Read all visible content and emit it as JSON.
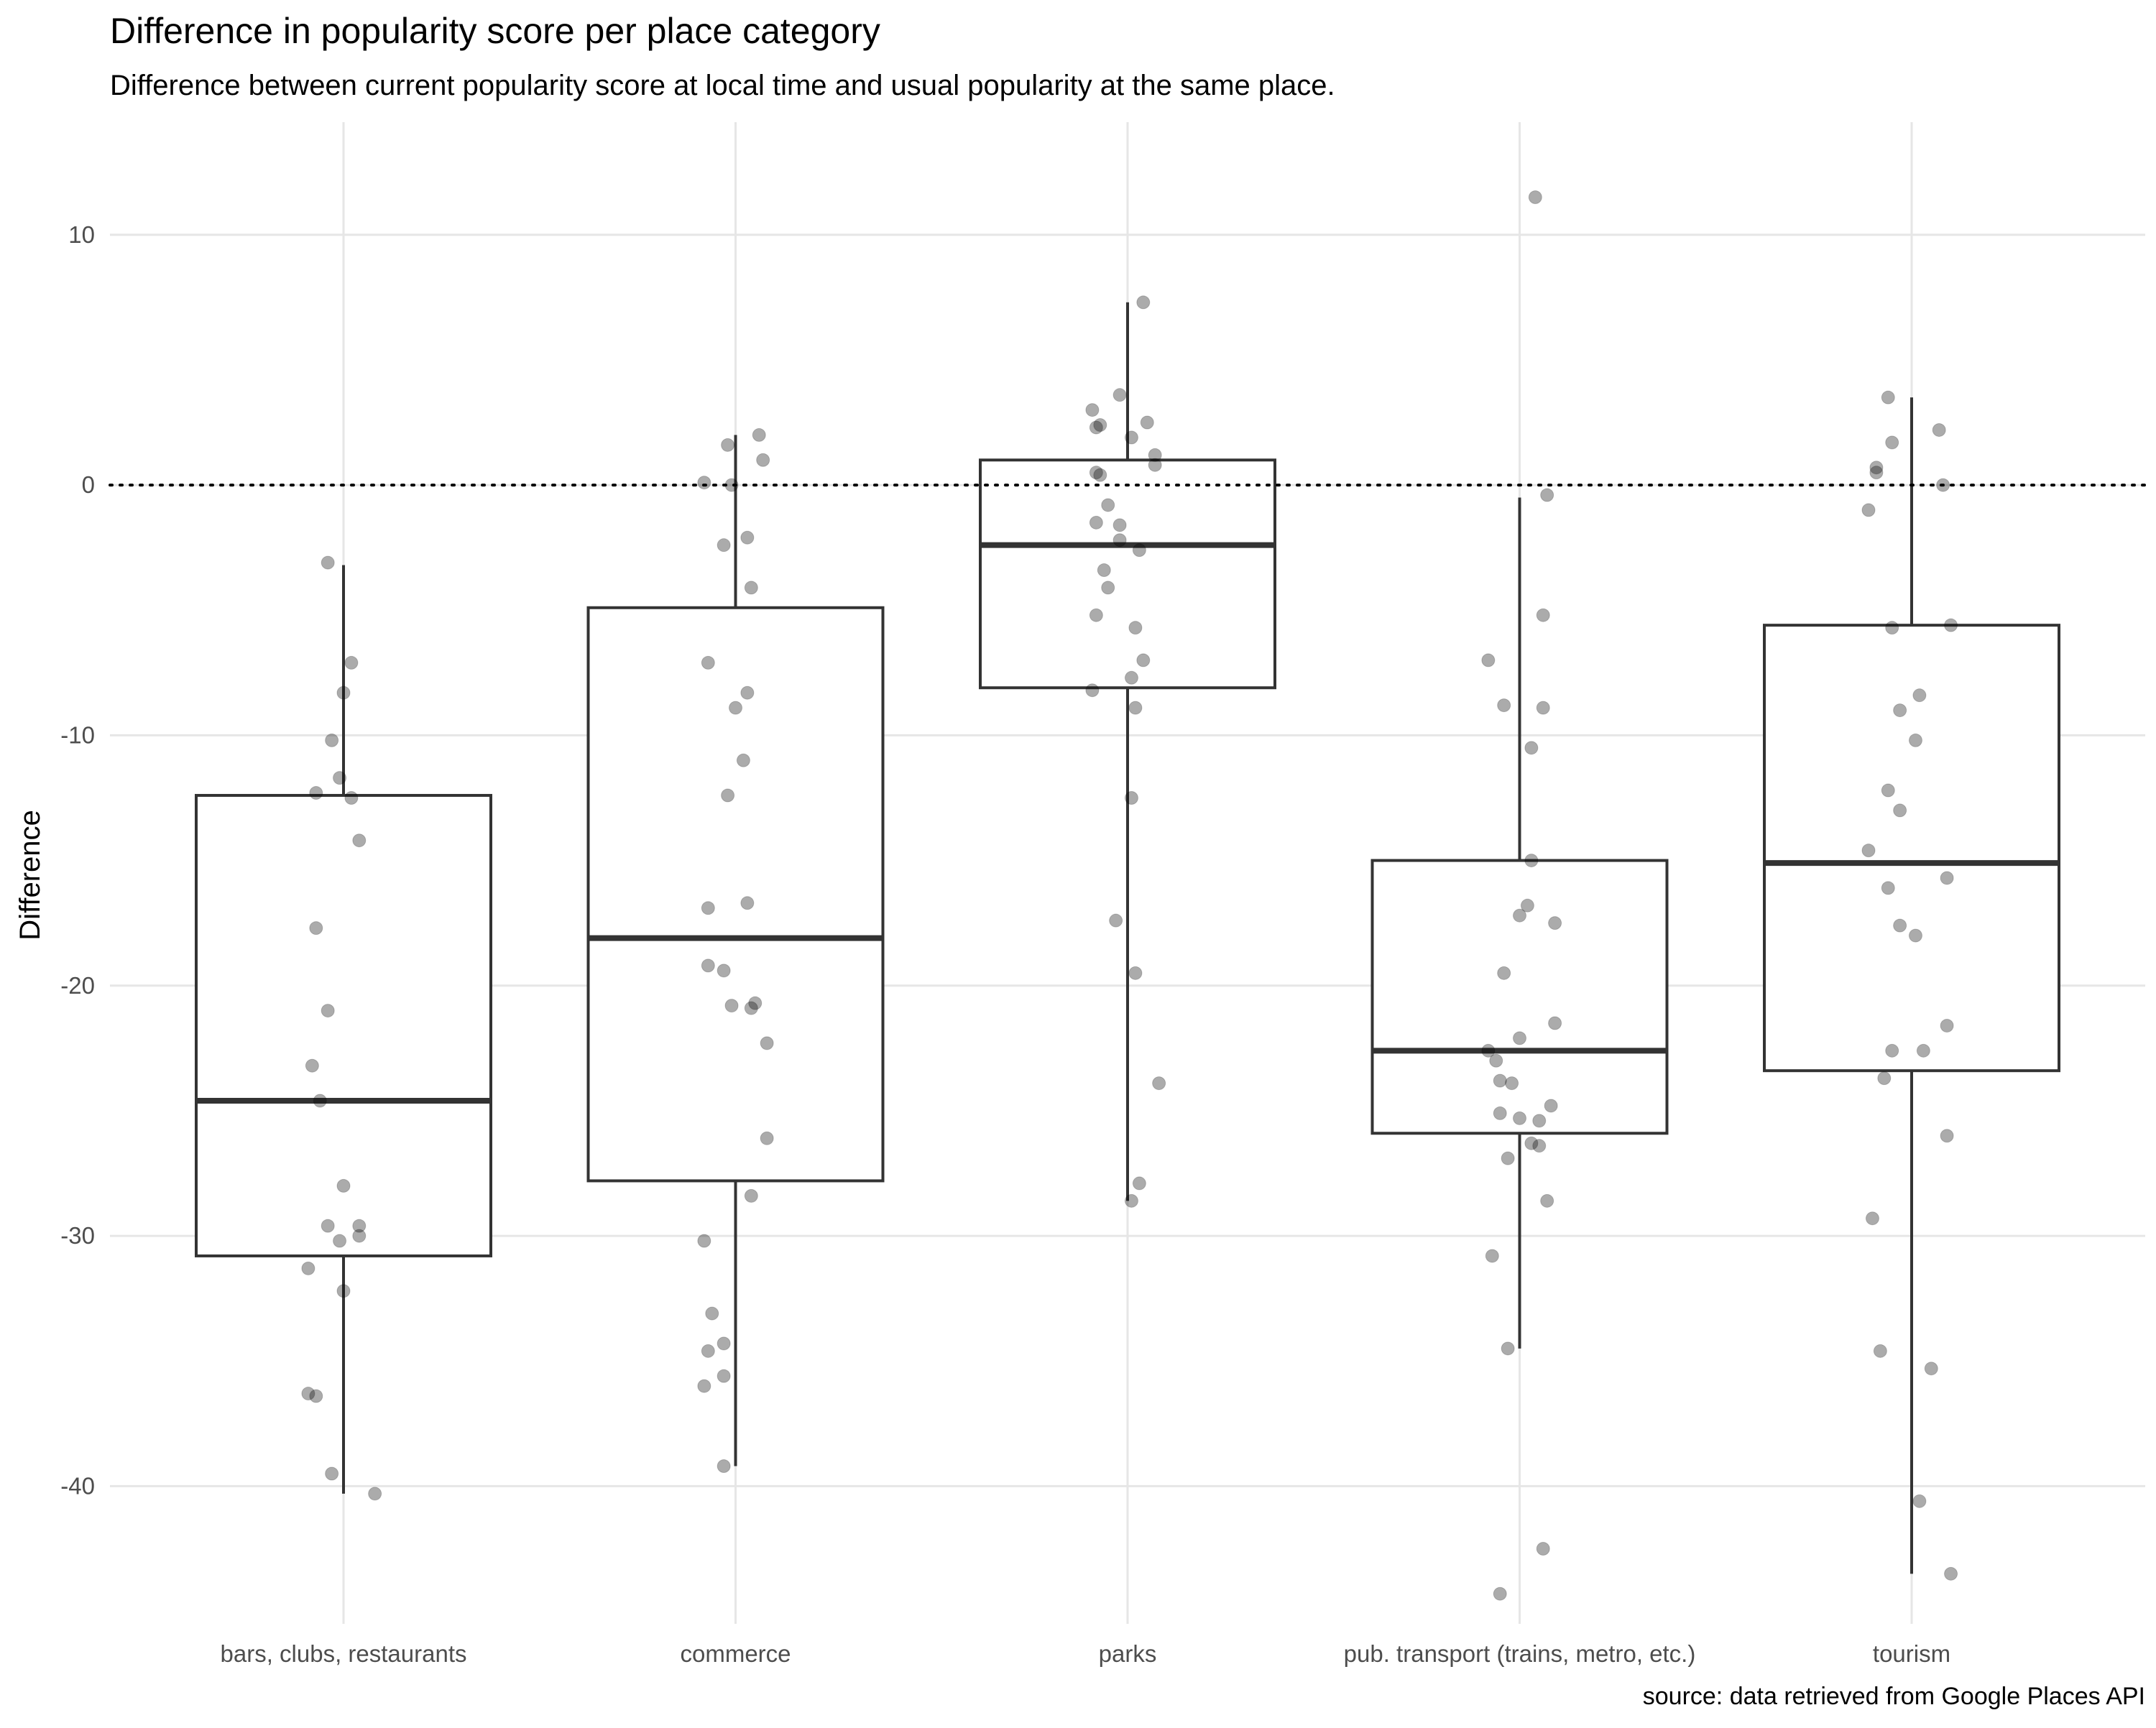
{
  "chart_data": {
    "type": "box",
    "title": "Difference in popularity score per place category",
    "subtitle": "Difference between current popularity score at local time and usual popularity at the same place.",
    "caption": "source: data retrieved from Google Places API",
    "xlabel": "",
    "ylabel": "Difference",
    "ylim": [
      -45.5,
      14.5
    ],
    "yticks": [
      10,
      0,
      -10,
      -20,
      -30,
      -40
    ],
    "ytick_labels": [
      "10",
      "0",
      "-10",
      "-20",
      "-30",
      "-40"
    ],
    "reference_line": {
      "y": 0,
      "style": "dotted"
    },
    "grid": true,
    "categories": [
      "bars, clubs, restaurants",
      "commerce",
      "parks",
      "pub. transport (trains, metro, etc.)",
      "tourism"
    ],
    "boxes": [
      {
        "category": "bars, clubs, restaurants",
        "whisker_low": -40.3,
        "q1": -30.8,
        "median": -24.6,
        "q3": -12.4,
        "whisker_high": -3.2
      },
      {
        "category": "commerce",
        "whisker_low": -39.2,
        "q1": -27.8,
        "median": -18.1,
        "q3": -4.9,
        "whisker_high": 2.0
      },
      {
        "category": "parks",
        "whisker_low": -28.6,
        "q1": -8.1,
        "median": -2.4,
        "q3": 1.0,
        "whisker_high": 7.3
      },
      {
        "category": "pub. transport (trains, metro, etc.)",
        "whisker_low": -34.5,
        "q1": -25.9,
        "median": -22.6,
        "q3": -15.0,
        "whisker_high": -0.5
      },
      {
        "category": "tourism",
        "whisker_low": -43.5,
        "q1": -23.4,
        "median": -15.1,
        "q3": -5.6,
        "whisker_high": 3.5
      }
    ],
    "points": [
      [
        [
          -0.04,
          -3.1
        ],
        [
          0.02,
          -7.1
        ],
        [
          0.0,
          -8.3
        ],
        [
          -0.03,
          -10.2
        ],
        [
          -0.01,
          -11.7
        ],
        [
          -0.07,
          -12.3
        ],
        [
          0.02,
          -12.5
        ],
        [
          0.04,
          -14.2
        ],
        [
          -0.07,
          -17.7
        ],
        [
          -0.04,
          -21.0
        ],
        [
          -0.08,
          -23.2
        ],
        [
          -0.06,
          -24.6
        ],
        [
          0.0,
          -28.0
        ],
        [
          -0.04,
          -29.6
        ],
        [
          0.04,
          -29.6
        ],
        [
          -0.01,
          -30.2
        ],
        [
          0.04,
          -30.0
        ],
        [
          -0.09,
          -31.3
        ],
        [
          0.0,
          -32.2
        ],
        [
          -0.09,
          -36.3
        ],
        [
          -0.07,
          -36.4
        ],
        [
          -0.03,
          -39.5
        ],
        [
          0.08,
          -40.3
        ]
      ],
      [
        [
          -0.08,
          0.1
        ],
        [
          -0.02,
          1.6
        ],
        [
          0.06,
          2.0
        ],
        [
          0.07,
          1.0
        ],
        [
          -0.01,
          0.0
        ],
        [
          -0.03,
          -2.4
        ],
        [
          0.03,
          -2.1
        ],
        [
          0.04,
          -4.1
        ],
        [
          -0.07,
          -7.1
        ],
        [
          0.03,
          -8.3
        ],
        [
          0.0,
          -8.9
        ],
        [
          0.02,
          -11.0
        ],
        [
          -0.02,
          -12.4
        ],
        [
          0.03,
          -16.7
        ],
        [
          -0.07,
          -16.9
        ],
        [
          -0.07,
          -19.2
        ],
        [
          -0.03,
          -19.4
        ],
        [
          -0.01,
          -20.8
        ],
        [
          0.05,
          -20.7
        ],
        [
          0.04,
          -20.9
        ],
        [
          0.08,
          -22.3
        ],
        [
          0.08,
          -26.1
        ],
        [
          0.04,
          -28.4
        ],
        [
          -0.08,
          -30.2
        ],
        [
          -0.06,
          -33.1
        ],
        [
          -0.07,
          -34.6
        ],
        [
          -0.03,
          -34.3
        ],
        [
          -0.03,
          -35.6
        ],
        [
          -0.08,
          -36.0
        ],
        [
          -0.03,
          -39.2
        ]
      ],
      [
        [
          0.04,
          7.3
        ],
        [
          -0.09,
          3.0
        ],
        [
          -0.02,
          3.6
        ],
        [
          0.05,
          2.5
        ],
        [
          -0.08,
          2.3
        ],
        [
          -0.07,
          2.4
        ],
        [
          0.01,
          1.9
        ],
        [
          0.07,
          1.2
        ],
        [
          0.07,
          0.8
        ],
        [
          -0.08,
          0.5
        ],
        [
          -0.07,
          0.4
        ],
        [
          -0.05,
          -0.8
        ],
        [
          -0.08,
          -1.5
        ],
        [
          -0.02,
          -1.6
        ],
        [
          -0.02,
          -2.2
        ],
        [
          0.03,
          -2.6
        ],
        [
          -0.06,
          -3.4
        ],
        [
          -0.05,
          -4.1
        ],
        [
          -0.08,
          -5.2
        ],
        [
          0.02,
          -5.7
        ],
        [
          0.04,
          -7.0
        ],
        [
          0.01,
          -7.7
        ],
        [
          -0.09,
          -8.2
        ],
        [
          0.02,
          -8.9
        ],
        [
          0.01,
          -12.5
        ],
        [
          -0.03,
          -17.4
        ],
        [
          0.02,
          -19.5
        ],
        [
          0.08,
          -23.9
        ],
        [
          0.03,
          -27.9
        ],
        [
          0.01,
          -28.6
        ]
      ],
      [
        [
          0.04,
          11.5
        ],
        [
          0.07,
          -0.4
        ],
        [
          -0.08,
          -7.0
        ],
        [
          0.06,
          -5.2
        ],
        [
          -0.04,
          -8.8
        ],
        [
          0.06,
          -8.9
        ],
        [
          0.03,
          -10.5
        ],
        [
          0.03,
          -15.0
        ],
        [
          0.02,
          -16.8
        ],
        [
          0.0,
          -17.2
        ],
        [
          0.09,
          -17.5
        ],
        [
          -0.04,
          -19.5
        ],
        [
          0.09,
          -21.5
        ],
        [
          0.0,
          -22.1
        ],
        [
          -0.08,
          -22.6
        ],
        [
          -0.06,
          -23.0
        ],
        [
          -0.05,
          -23.8
        ],
        [
          -0.02,
          -23.9
        ],
        [
          0.08,
          -24.8
        ],
        [
          -0.05,
          -25.1
        ],
        [
          0.0,
          -25.3
        ],
        [
          0.05,
          -25.4
        ],
        [
          0.03,
          -26.3
        ],
        [
          0.05,
          -26.4
        ],
        [
          -0.03,
          -26.9
        ],
        [
          0.07,
          -28.6
        ],
        [
          -0.07,
          -30.8
        ],
        [
          -0.03,
          -34.5
        ],
        [
          0.06,
          -42.5
        ],
        [
          -0.05,
          -44.3
        ]
      ],
      [
        [
          -0.06,
          3.5
        ],
        [
          0.07,
          2.2
        ],
        [
          -0.05,
          1.7
        ],
        [
          -0.09,
          0.7
        ],
        [
          -0.09,
          0.5
        ],
        [
          0.08,
          0.0
        ],
        [
          -0.11,
          -1.0
        ],
        [
          -0.05,
          -5.7
        ],
        [
          0.1,
          -5.6
        ],
        [
          0.02,
          -8.4
        ],
        [
          -0.03,
          -9.0
        ],
        [
          0.01,
          -10.2
        ],
        [
          -0.06,
          -12.2
        ],
        [
          -0.03,
          -13.0
        ],
        [
          -0.11,
          -14.6
        ],
        [
          -0.06,
          -16.1
        ],
        [
          0.09,
          -15.7
        ],
        [
          -0.03,
          -17.6
        ],
        [
          0.01,
          -18.0
        ],
        [
          0.09,
          -21.6
        ],
        [
          -0.05,
          -22.6
        ],
        [
          0.03,
          -22.6
        ],
        [
          -0.07,
          -23.7
        ],
        [
          0.09,
          -26.0
        ],
        [
          -0.1,
          -29.3
        ],
        [
          -0.08,
          -34.6
        ],
        [
          0.05,
          -35.3
        ],
        [
          0.02,
          -40.6
        ],
        [
          0.1,
          -43.5
        ]
      ]
    ]
  }
}
